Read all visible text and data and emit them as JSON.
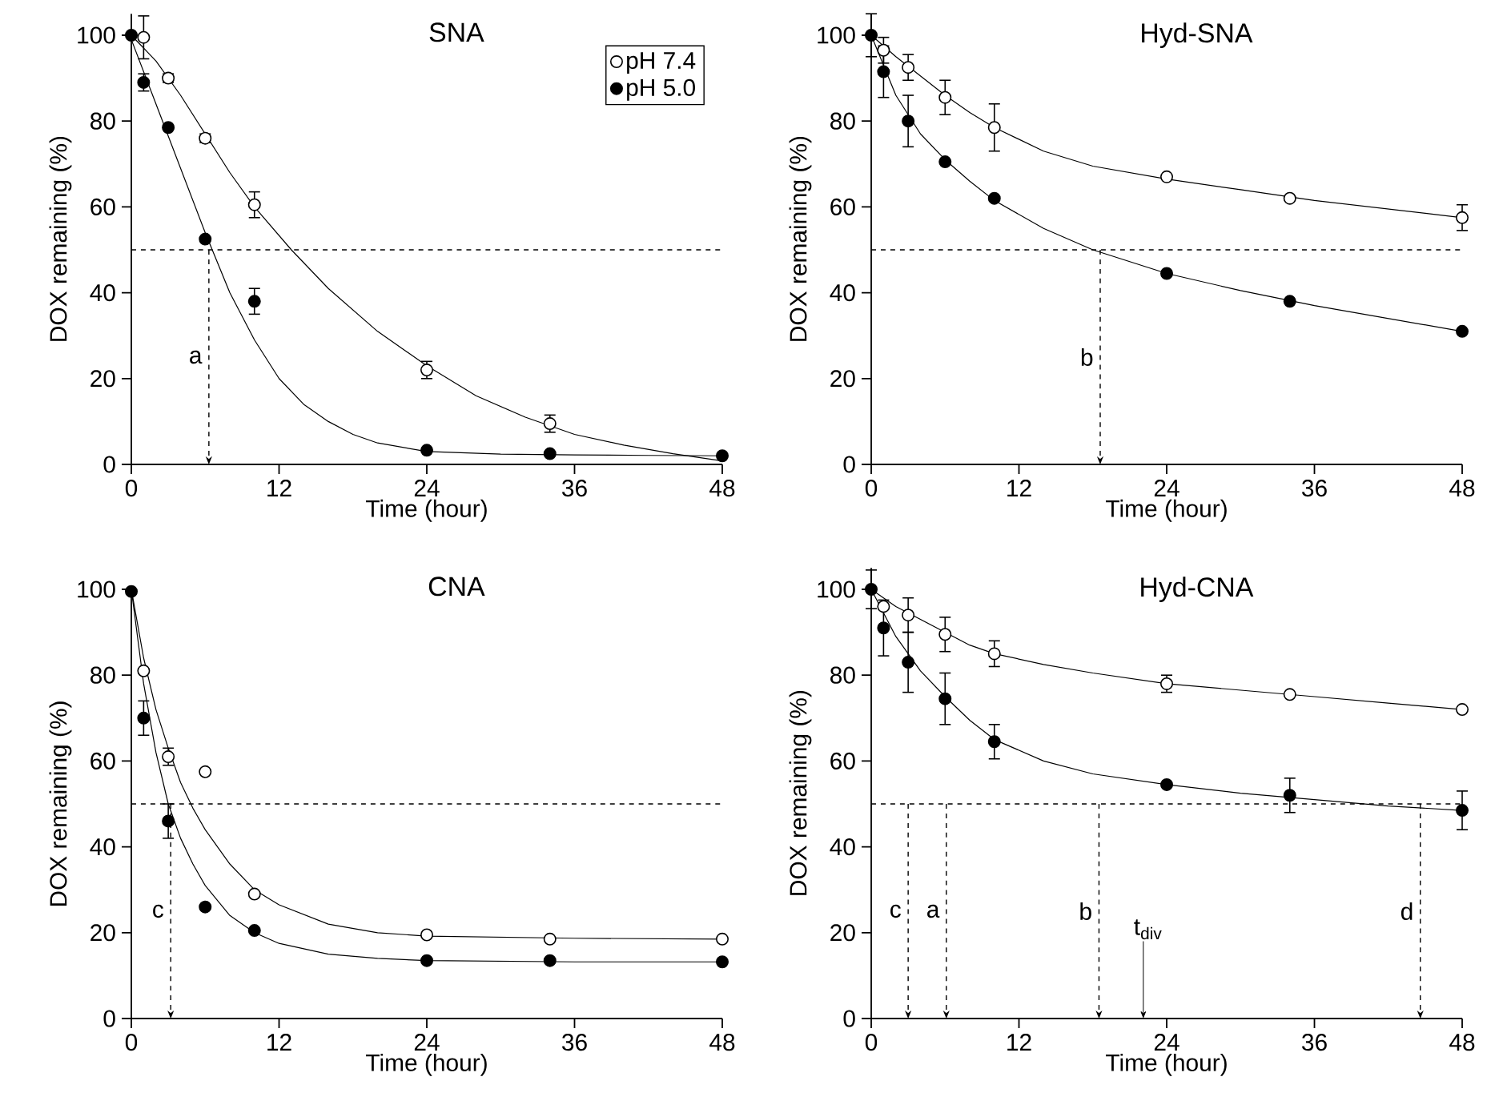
{
  "chart_data": [
    {
      "type": "scatter",
      "title": "SNA",
      "xlabel": "Time (hour)",
      "ylabel": "DOX remaining (%)",
      "xlim": [
        0,
        48
      ],
      "ylim": [
        0,
        105
      ],
      "xticks": [
        0,
        12,
        24,
        36,
        48
      ],
      "yticks": [
        0,
        20,
        40,
        60,
        80,
        100
      ],
      "legend": "top right",
      "ref_lines": [
        {
          "axis": "y",
          "value": 50,
          "line_style": "dashed",
          "color": "#000000"
        },
        {
          "axis": "x",
          "value": 6.3,
          "label": "a",
          "line_style": "dashed",
          "color": "#000000"
        }
      ],
      "series": [
        {
          "type": "line",
          "color": "#000000",
          "x": [
            0,
            2,
            4,
            6,
            8,
            10,
            13,
            16,
            20,
            24,
            28,
            32,
            36,
            40,
            44,
            48
          ],
          "values": [
            100,
            94,
            86,
            77,
            68,
            60,
            50,
            41,
            31,
            23,
            16,
            11,
            7,
            4.5,
            2.5,
            0.8
          ]
        },
        {
          "type": "line",
          "color": "#000000",
          "x": [
            0,
            2,
            4,
            6,
            8,
            10,
            12,
            14,
            16,
            18,
            20,
            24,
            30,
            36,
            42,
            48
          ],
          "values": [
            99,
            84,
            69,
            54,
            40,
            29,
            20,
            14,
            10,
            7,
            5,
            3,
            2.4,
            2.2,
            2.1,
            2
          ]
        },
        {
          "name": "pH 7.4",
          "color": "#ffffff",
          "marker": "circle",
          "x": [
            1,
            3,
            6,
            10,
            24,
            34
          ],
          "values": [
            99.5,
            90,
            76,
            60.5,
            22,
            9.5
          ],
          "errors": [
            5,
            1,
            1,
            3,
            2,
            2
          ]
        },
        {
          "name": "pH 5.0",
          "color": "#000000",
          "marker": "circle",
          "x": [
            0,
            1,
            3,
            6,
            10,
            24,
            34,
            48
          ],
          "values": [
            100,
            89,
            78.5,
            52.5,
            38,
            3.3,
            2.5,
            2
          ],
          "errors": [
            null,
            2,
            null,
            null,
            3,
            null,
            null,
            null
          ]
        }
      ]
    },
    {
      "type": "scatter",
      "title": "Hyd-SNA",
      "xlabel": "Time (hour)",
      "ylabel": "DOX remaining (%)",
      "xlim": [
        0,
        48
      ],
      "ylim": [
        0,
        105
      ],
      "xticks": [
        0,
        12,
        24,
        36,
        48
      ],
      "yticks": [
        0,
        20,
        40,
        60,
        80,
        100
      ],
      "ref_lines": [
        {
          "axis": "y",
          "value": 50,
          "line_style": "dashed",
          "color": "#000000"
        },
        {
          "axis": "x",
          "value": 18.6,
          "label": "b",
          "line_style": "dashed",
          "color": "#000000"
        }
      ],
      "series": [
        {
          "type": "line",
          "color": "#000000",
          "x": [
            0,
            2,
            4,
            6,
            8,
            10,
            14,
            18,
            24,
            30,
            36,
            42,
            48
          ],
          "values": [
            100,
            95,
            90.5,
            86,
            82,
            78.5,
            73,
            69.5,
            66.5,
            64,
            61.5,
            59.5,
            57.5
          ]
        },
        {
          "type": "line",
          "color": "#000000",
          "x": [
            0,
            2,
            4,
            6,
            8,
            10,
            14,
            18,
            24,
            30,
            36,
            42,
            48
          ],
          "values": [
            100,
            86,
            77,
            71,
            66,
            61.5,
            55,
            50,
            44.5,
            40.5,
            37,
            34,
            31
          ]
        },
        {
          "color": "#ffffff",
          "marker": "circle",
          "x": [
            1,
            3,
            6,
            10,
            24,
            34,
            48
          ],
          "values": [
            96.5,
            92.5,
            85.5,
            78.5,
            67,
            62,
            57.5
          ],
          "errors": [
            3,
            3,
            4,
            5.5,
            null,
            null,
            3
          ]
        },
        {
          "color": "#000000",
          "marker": "circle",
          "x": [
            0,
            1,
            3,
            6,
            10,
            24,
            34,
            48
          ],
          "values": [
            100,
            91.5,
            80,
            70.5,
            62,
            44.5,
            38,
            31
          ],
          "errors": [
            5,
            6,
            6,
            null,
            null,
            null,
            null,
            null
          ]
        }
      ]
    },
    {
      "type": "scatter",
      "title": "CNA",
      "xlabel": "Time (hour)",
      "ylabel": "DOX remaining (%)",
      "xlim": [
        0,
        48
      ],
      "ylim": [
        0,
        100
      ],
      "xticks": [
        0,
        12,
        24,
        36,
        48
      ],
      "yticks": [
        0,
        20,
        40,
        60,
        80,
        100
      ],
      "ref_lines": [
        {
          "axis": "y",
          "value": 50,
          "line_style": "dashed",
          "color": "#000000"
        },
        {
          "axis": "x",
          "value": 3.2,
          "label": "c",
          "line_style": "dashed",
          "color": "#000000"
        }
      ],
      "series": [
        {
          "type": "line",
          "color": "#000000",
          "x": [
            0,
            1,
            2,
            3,
            4,
            5,
            6,
            8,
            10,
            12,
            16,
            20,
            24,
            36,
            48
          ],
          "values": [
            100,
            84,
            72,
            63,
            55,
            49,
            44,
            36,
            30,
            26.5,
            22,
            20,
            19.2,
            18.7,
            18.5
          ]
        },
        {
          "type": "line",
          "color": "#000000",
          "x": [
            0,
            1,
            2,
            3,
            4,
            5,
            6,
            8,
            10,
            12,
            16,
            20,
            24,
            36,
            48
          ],
          "values": [
            100,
            78,
            62,
            50,
            42,
            36,
            31,
            24,
            20,
            17.5,
            15,
            14,
            13.5,
            13.2,
            13.2
          ]
        },
        {
          "color": "#ffffff",
          "marker": "circle",
          "x": [
            1,
            3,
            6,
            10,
            24,
            34,
            48
          ],
          "values": [
            81,
            61,
            57.5,
            29,
            19.5,
            18.5,
            18.5
          ],
          "errors": [
            null,
            2,
            null,
            null,
            null,
            null,
            null
          ]
        },
        {
          "color": "#000000",
          "marker": "circle",
          "x": [
            0,
            1,
            3,
            6,
            10,
            24,
            34,
            48
          ],
          "values": [
            99.5,
            70,
            46,
            26,
            20.5,
            13.5,
            13.5,
            13.2
          ],
          "errors": [
            null,
            4,
            4,
            null,
            null,
            null,
            null,
            null
          ]
        }
      ]
    },
    {
      "type": "scatter",
      "title": "Hyd-CNA",
      "xlabel": "Time (hour)",
      "ylabel": "DOX remaining (%)",
      "xlim": [
        0,
        48
      ],
      "ylim": [
        0,
        105
      ],
      "xticks": [
        0,
        12,
        24,
        36,
        48
      ],
      "yticks": [
        0,
        20,
        40,
        60,
        80,
        100
      ],
      "ref_lines": [
        {
          "axis": "y",
          "value": 50,
          "line_style": "dashed",
          "color": "#000000"
        },
        {
          "axis": "x",
          "value": 3,
          "label": "c",
          "line_style": "dashed",
          "color": "#000000"
        },
        {
          "axis": "x",
          "value": 6.1,
          "label": "a",
          "line_style": "dashed",
          "color": "#000000"
        },
        {
          "axis": "x",
          "value": 18.5,
          "label": "b",
          "line_style": "dashed",
          "color": "#000000"
        },
        {
          "axis": "x",
          "value": 22.1,
          "label": "t$_{div}$",
          "line_style": "solid",
          "color": "#000000"
        },
        {
          "axis": "x",
          "value": 44.6,
          "label": "d",
          "line_style": "dashed",
          "color": "#000000"
        }
      ],
      "series": [
        {
          "type": "line",
          "color": "#000000",
          "x": [
            0,
            2,
            4,
            6,
            8,
            10,
            14,
            18,
            24,
            30,
            36,
            42,
            48
          ],
          "values": [
            100,
            96,
            93,
            90,
            87,
            85,
            82.5,
            80.5,
            78,
            76.5,
            75,
            73.5,
            72
          ]
        },
        {
          "type": "line",
          "color": "#000000",
          "x": [
            0,
            2,
            4,
            6,
            8,
            10,
            14,
            18,
            24,
            30,
            36,
            42,
            48
          ],
          "values": [
            100,
            89,
            81,
            75,
            69.5,
            65,
            60,
            57,
            54.5,
            52.5,
            51,
            49.5,
            48.5
          ]
        },
        {
          "color": "#ffffff",
          "marker": "circle",
          "x": [
            1,
            3,
            6,
            10,
            24,
            34,
            48
          ],
          "values": [
            96,
            94,
            89.5,
            85,
            78,
            75.5,
            72
          ],
          "errors": [
            null,
            4,
            4,
            3,
            2,
            null,
            null
          ]
        },
        {
          "color": "#000000",
          "marker": "circle",
          "x": [
            0,
            1,
            3,
            6,
            10,
            24,
            34,
            48
          ],
          "values": [
            100,
            91,
            83,
            74.5,
            64.5,
            54.5,
            52,
            48.5
          ],
          "errors": [
            4.5,
            6.5,
            7,
            6,
            4,
            null,
            4,
            4.5
          ]
        }
      ]
    }
  ]
}
